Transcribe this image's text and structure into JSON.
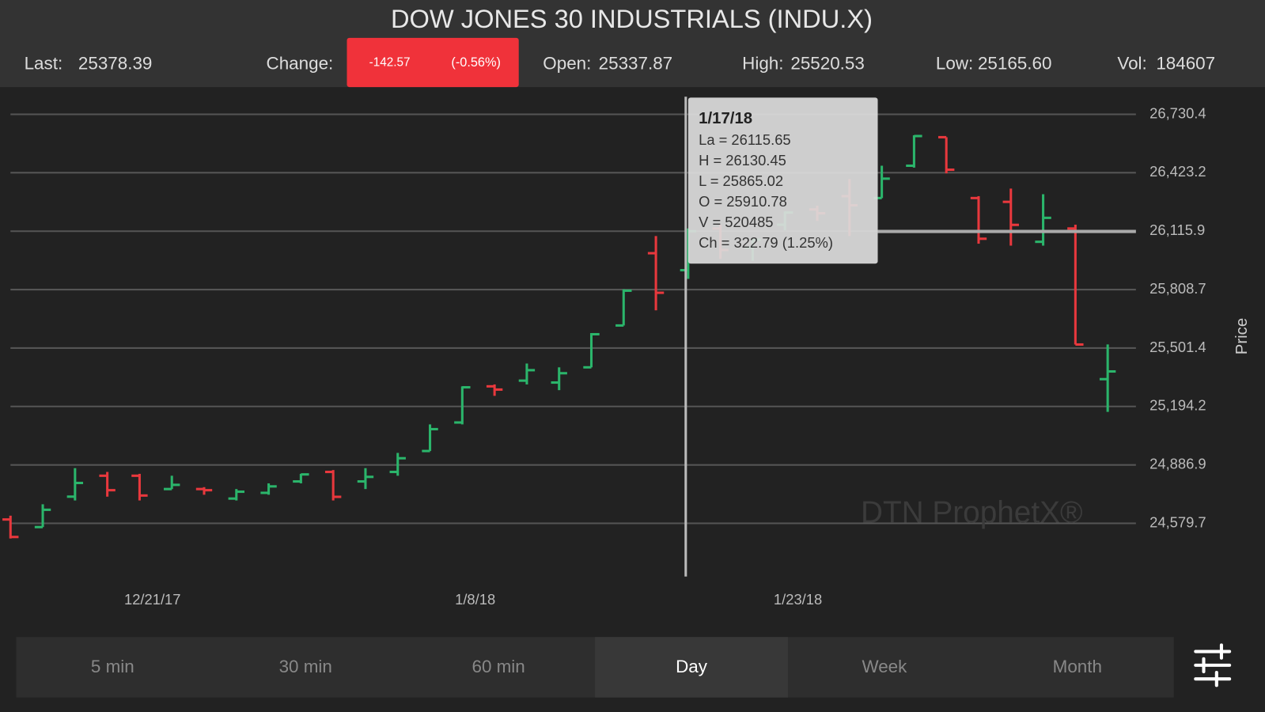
{
  "header": {
    "title": "DOW JONES 30 INDUSTRIALS (INDU.X)",
    "last_label": "Last:",
    "last": "25378.39",
    "change_label": "Change:",
    "change": "-142.57",
    "change_pct": "(-0.56%)",
    "open_label": "Open:",
    "open": "25337.87",
    "high_label": "High:",
    "high": "25520.53",
    "low_label": "Low:",
    "low": "25165.60",
    "vol_label": "Vol:",
    "vol": "184607"
  },
  "chart_data": {
    "type": "ohlc",
    "y_label": "Price",
    "categories": [
      null,
      null,
      null,
      null,
      null,
      "12/21/17",
      null,
      null,
      null,
      null,
      null,
      null,
      null,
      null,
      null,
      "1/8/18",
      null,
      null,
      null,
      null,
      null,
      null,
      null,
      null,
      null,
      "1/23/18",
      null,
      null,
      null,
      null,
      null,
      null,
      null,
      null,
      null
    ],
    "open": [
      24600,
      24560,
      24720,
      24830,
      24830,
      24760,
      24760,
      24710,
      24740,
      24800,
      24850,
      24800,
      24850,
      24960,
      25110,
      25300,
      25330,
      25320,
      25400,
      25620,
      26000,
      25910.78,
      26130,
      26030,
      26150,
      26230,
      26300,
      26290,
      26460,
      26610,
      26290,
      26270,
      26060,
      26130,
      25337.87
    ],
    "high": [
      24620,
      24680,
      24870,
      24850,
      24840,
      24830,
      24770,
      24760,
      24790,
      24840,
      24860,
      24870,
      24950,
      25100,
      25300,
      25310,
      25420,
      25400,
      25580,
      25810,
      26090,
      26130.45,
      26150,
      26080,
      26220,
      26250,
      26390,
      26460,
      26620,
      26610,
      26300,
      26340,
      26310,
      26150,
      25520.53
    ],
    "low": [
      24500,
      24560,
      24700,
      24720,
      24700,
      24760,
      24730,
      24700,
      24730,
      24790,
      24700,
      24760,
      24830,
      24960,
      25100,
      25250,
      25310,
      25280,
      25400,
      25620,
      25700,
      25865.02,
      25970,
      25960,
      26120,
      26170,
      26090,
      26290,
      26450,
      26420,
      26050,
      26040,
      26040,
      25520,
      25165.6
    ],
    "close": [
      24508,
      24651,
      24792,
      24754,
      24726,
      24782,
      24754,
      24746,
      24774,
      24837,
      24719,
      24824,
      24922,
      25075,
      25295,
      25283,
      25385,
      25369,
      25574,
      25803,
      25792,
      26115.65,
      26017,
      26071,
      26214,
      26210,
      26252,
      26392,
      26616,
      26439,
      26076,
      26149,
      26186,
      25520,
      25378.39
    ],
    "up_color": "#2bb56b",
    "down_color": "#e8383d",
    "ylim": [
      24300,
      26865
    ],
    "yticks": [
      {
        "value": 24579.7,
        "label": "24,579.7"
      },
      {
        "value": 24886.9,
        "label": "24,886.9"
      },
      {
        "value": 25194.2,
        "label": "25,194.2"
      },
      {
        "value": 25501.4,
        "label": "25,501.4"
      },
      {
        "value": 25808.7,
        "label": "25,808.7"
      },
      {
        "value": 26115.9,
        "label": "26,115.9"
      },
      {
        "value": 26423.2,
        "label": "26,423.2"
      },
      {
        "value": 26730.4,
        "label": "26,730.4"
      }
    ],
    "grid": true,
    "tooltip": {
      "date": "1/17/18",
      "lines": [
        "La = 26115.65",
        "H = 26130.45",
        "L = 25865.02",
        "O = 25910.78",
        "V = 520485",
        "Ch = 322.79 (1.25%)"
      ]
    },
    "watermark": "DTN ProphetX®"
  },
  "intervals": [
    "5 min",
    "30 min",
    "60 min",
    "Day",
    "Week",
    "Month"
  ],
  "selected_interval": "Day"
}
